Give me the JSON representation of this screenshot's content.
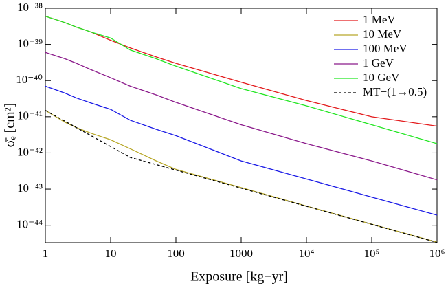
{
  "chart_data": {
    "type": "line",
    "x_label": "Exposure [kg−yr]",
    "y_label": "σ̄ₑ [cm²]",
    "x": [
      1,
      2,
      3,
      5,
      10,
      20,
      50,
      100,
      1000,
      10000,
      100000,
      1000000
    ],
    "series": [
      {
        "name": "1 MeV",
        "color": "#e31a1c",
        "values": [
          6e-39,
          4e-39,
          3e-39,
          2.2e-39,
          1.3e-39,
          8e-40,
          4.5e-40,
          3e-40,
          9e-41,
          2.8e-41,
          1e-41,
          5.5e-42
        ]
      },
      {
        "name": "10 MeV",
        "color": "#b8a82a",
        "values": [
          1.5e-41,
          7e-42,
          5e-42,
          3.5e-42,
          2.3e-42,
          1.3e-42,
          6e-43,
          3.5e-43,
          1.1e-43,
          3.4e-44,
          1.07e-44,
          3.4e-45
        ]
      },
      {
        "name": "100 MeV",
        "color": "#1a1ae6",
        "values": [
          7e-41,
          4.5e-41,
          3.3e-41,
          2.4e-41,
          1.6e-41,
          8e-42,
          4.5e-42,
          3e-42,
          6e-43,
          1.9e-43,
          6e-44,
          1.9e-44
        ]
      },
      {
        "name": "1 GeV",
        "color": "#8b1a8b",
        "values": [
          6e-40,
          4e-40,
          3e-40,
          2e-40,
          1.2e-40,
          7e-41,
          4e-41,
          2.5e-41,
          6e-42,
          1.8e-42,
          6e-43,
          1.8e-43
        ]
      },
      {
        "name": "10 GeV",
        "color": "#22e622",
        "values": [
          6e-39,
          4e-39,
          3e-39,
          2.2e-39,
          1.5e-39,
          7e-40,
          4e-40,
          2.5e-40,
          6e-41,
          2e-41,
          6e-42,
          1.8e-42
        ]
      },
      {
        "name": "MT−(1→0.5)",
        "color": "#000000",
        "dashed": true,
        "values": [
          1.5e-41,
          7.5e-42,
          5e-42,
          3e-42,
          1.5e-42,
          7.5e-43,
          4.74e-43,
          3.35e-43,
          1.06e-43,
          3.35e-44,
          1.06e-44,
          3.35e-45
        ]
      }
    ],
    "log_x": true,
    "log_y": true,
    "xlim": [
      1,
      1000000
    ],
    "ylim": [
      3.3e-45,
      1e-38
    ],
    "xticks": [
      1,
      10,
      100,
      1000,
      {
        "value": 10000,
        "label": "10⁴"
      },
      {
        "value": 100000,
        "label": "10⁵"
      },
      {
        "value": 1000000,
        "label": "10⁶"
      }
    ],
    "yticks": [
      {
        "value": 1e-38,
        "label": "10⁻³⁸"
      },
      {
        "value": 1e-39,
        "label": "10⁻³⁹"
      },
      {
        "value": 1e-40,
        "label": "10⁻⁴⁰"
      },
      {
        "value": 1e-41,
        "label": "10⁻⁴¹"
      },
      {
        "value": 1e-42,
        "label": "10⁻⁴²"
      },
      {
        "value": 1e-43,
        "label": "10⁻⁴³"
      },
      {
        "value": 1e-44,
        "label": "10⁻⁴⁴"
      }
    ],
    "legend": "top-right"
  }
}
